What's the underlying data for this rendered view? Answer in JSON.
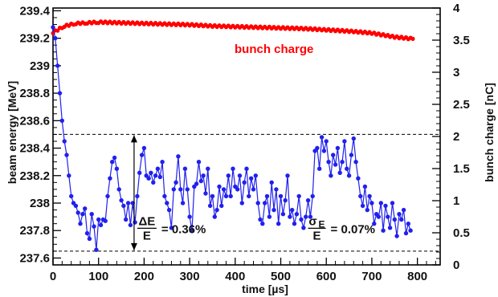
{
  "chart_data": {
    "type": "line",
    "xlabel": "time [µs]",
    "ylabel_left": "beam energy [MeV]",
    "ylabel_right": "bunch charge [nC]",
    "xlim": [
      0,
      850
    ],
    "ylim_left": [
      237.55,
      239.42
    ],
    "ylim_right": [
      0,
      4
    ],
    "x_ticks": [
      0,
      100,
      200,
      300,
      400,
      500,
      600,
      700,
      800
    ],
    "y_left_ticks": [
      237.6,
      237.8,
      238,
      238.2,
      238.4,
      238.6,
      238.8,
      239,
      239.2,
      239.4
    ],
    "y_left_tick_labels": [
      "237.6",
      "237.8",
      "238",
      "238.2",
      "238.4",
      "238.6",
      "238.8",
      "239",
      "239.2",
      "239.4"
    ],
    "y_right_ticks": [
      0,
      0.5,
      1,
      1.5,
      2,
      2.5,
      3,
      3.5,
      4
    ],
    "y_right_tick_labels": [
      "0",
      "0.5",
      "1",
      "1.5",
      "2",
      "2.5",
      "3",
      "3.5",
      "4"
    ],
    "grid": false,
    "series": [
      {
        "name": "bunch charge",
        "axis": "right",
        "color": "#ff0000",
        "x": [
          0,
          25,
          50,
          75,
          100,
          150,
          200,
          250,
          300,
          350,
          400,
          450,
          500,
          550,
          600,
          650,
          700,
          750,
          790
        ],
        "values": [
          3.62,
          3.72,
          3.76,
          3.77,
          3.78,
          3.77,
          3.76,
          3.75,
          3.74,
          3.72,
          3.71,
          3.7,
          3.69,
          3.68,
          3.66,
          3.64,
          3.61,
          3.55,
          3.52
        ]
      },
      {
        "axis": "left",
        "color": "#2020ee",
        "x": [
          0,
          5,
          10,
          15,
          20,
          25,
          30,
          35,
          40,
          45,
          50,
          55,
          60,
          65,
          70,
          75,
          80,
          85,
          90,
          95,
          100,
          105,
          110,
          115,
          120,
          125,
          130,
          135,
          140,
          145,
          150,
          155,
          160,
          165,
          170,
          175,
          180,
          185,
          190,
          195,
          200,
          205,
          210,
          215,
          220,
          225,
          230,
          235,
          240,
          245,
          250,
          255,
          260,
          265,
          270,
          275,
          280,
          285,
          290,
          295,
          300,
          305,
          310,
          315,
          320,
          325,
          330,
          335,
          340,
          345,
          350,
          355,
          360,
          365,
          370,
          375,
          380,
          385,
          390,
          395,
          400,
          405,
          410,
          415,
          420,
          425,
          430,
          435,
          440,
          445,
          450,
          455,
          460,
          465,
          470,
          475,
          480,
          485,
          490,
          495,
          500,
          505,
          510,
          515,
          520,
          525,
          530,
          535,
          540,
          545,
          550,
          555,
          560,
          565,
          570,
          575,
          580,
          585,
          590,
          595,
          600,
          605,
          610,
          615,
          620,
          625,
          630,
          635,
          640,
          645,
          650,
          655,
          660,
          665,
          670,
          675,
          680,
          685,
          690,
          695,
          700,
          705,
          710,
          715,
          720,
          725,
          730,
          735,
          740,
          745,
          750,
          755,
          760,
          765,
          770,
          775,
          780,
          785
        ],
        "values": [
          239.28,
          239.2,
          239.0,
          238.8,
          238.6,
          238.45,
          238.35,
          238.2,
          238.05,
          238.0,
          237.98,
          237.93,
          237.85,
          237.92,
          237.96,
          237.78,
          237.74,
          237.92,
          237.83,
          237.66,
          237.88,
          237.84,
          237.88,
          237.87,
          238.05,
          238.18,
          238.3,
          238.33,
          238.25,
          238.1,
          238.02,
          237.98,
          237.88,
          238.0,
          237.84,
          238.0,
          237.86,
          238.05,
          238.22,
          238.35,
          238.4,
          238.2,
          238.18,
          238.22,
          238.15,
          238.2,
          238.25,
          238.19,
          238.3,
          238.05,
          238.0,
          237.95,
          237.82,
          238.1,
          238.15,
          238.34,
          238.1,
          238.0,
          238.25,
          238.1,
          237.9,
          237.8,
          238.12,
          238.14,
          238.3,
          238.16,
          238.2,
          238.07,
          238.25,
          237.98,
          238.05,
          237.9,
          237.95,
          238.12,
          237.98,
          238.1,
          238.05,
          238.2,
          238.05,
          238.25,
          238.12,
          238.1,
          238.2,
          238.0,
          238.15,
          238.25,
          238.05,
          238.18,
          238.1,
          238.2,
          238.0,
          237.88,
          237.85,
          238.0,
          238.05,
          237.9,
          238.15,
          237.95,
          238.1,
          237.85,
          238.05,
          237.92,
          238.02,
          238.2,
          237.9,
          237.95,
          237.85,
          237.92,
          238.05,
          237.88,
          237.82,
          237.9,
          238.02,
          237.9,
          238.05,
          238.38,
          238.4,
          238.25,
          238.48,
          238.38,
          238.45,
          238.3,
          238.2,
          238.35,
          238.28,
          238.4,
          238.22,
          238.3,
          238.45,
          238.25,
          238.2,
          238.35,
          238.47,
          238.3,
          238.18,
          238.05,
          237.98,
          238.12,
          237.95,
          238.05,
          238.0,
          237.85,
          237.92,
          237.9,
          238.0,
          237.8,
          237.98,
          237.9,
          237.82,
          238.0,
          237.88,
          237.76,
          237.92,
          237.88,
          237.95,
          237.78,
          237.85,
          237.8
        ]
      }
    ],
    "reference_lines_left": [
      238.5,
      237.65
    ],
    "annotations": {
      "bunch_charge_label": "bunch charge",
      "delta_e": {
        "numerator": "ΔE",
        "denominator": "E",
        "value": "= 0.36%"
      },
      "sigma_e": {
        "numerator": "σ",
        "numerator_sub": "E",
        "denominator": "E",
        "value": "= 0.07%"
      }
    }
  }
}
